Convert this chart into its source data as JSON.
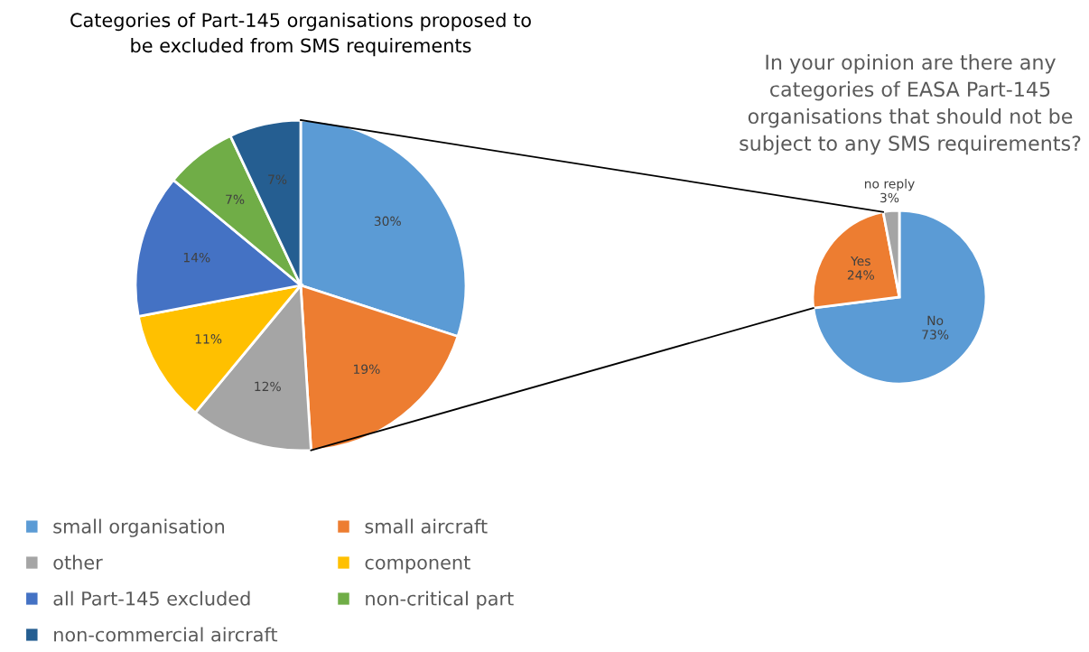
{
  "chart_data": [
    {
      "type": "pie",
      "title": "Categories of Part-145 organisations proposed to\nbe excluded from SMS requirements",
      "categories": [
        "small organisation",
        "small aircraft",
        "other",
        "component",
        "all Part-145 excluded",
        "non-critical part",
        "non-commercial aircraft"
      ],
      "values": [
        30,
        19,
        12,
        11,
        14,
        7,
        7
      ],
      "value_labels": [
        "30%",
        "19%",
        "12%",
        "11%",
        "14%",
        "7%",
        "7%"
      ],
      "colors": [
        "#5b9bd5",
        "#ed7d31",
        "#a5a5a5",
        "#ffc000",
        "#4472c4",
        "#70ad47",
        "#255e91"
      ],
      "legend": "bottom"
    },
    {
      "type": "pie",
      "title": "In your opinion are there any\ncategories of EASA Part-145\norganisations that should not be\nsubject to any SMS requirements?",
      "categories": [
        "No",
        "Yes",
        "no reply"
      ],
      "values": [
        73,
        24,
        3
      ],
      "value_labels": [
        "73%",
        "24%",
        "3%"
      ],
      "colors": [
        "#5b9bd5",
        "#ed7d31",
        "#a5a5a5"
      ]
    }
  ]
}
